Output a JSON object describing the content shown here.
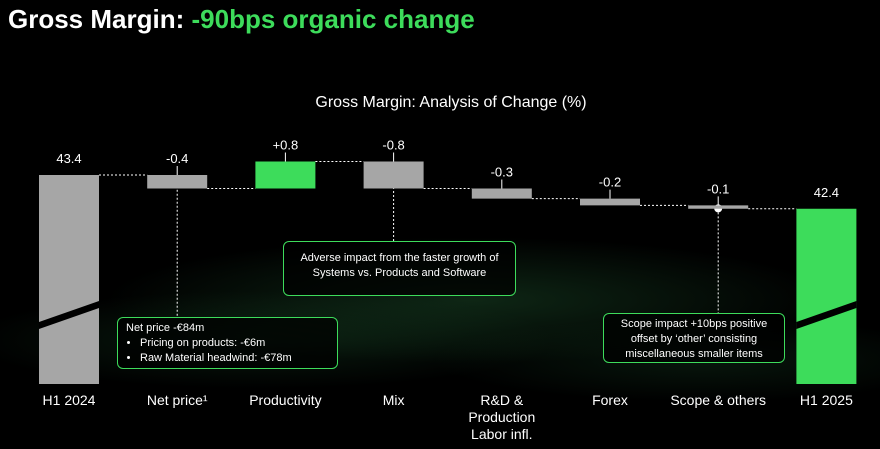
{
  "slide": {
    "title_prefix": "Gross Margin: ",
    "title_highlight": "-90bps organic change"
  },
  "colors": {
    "background": "#000000",
    "total_bar": "#a6a6a6",
    "negative_bar": "#a6a6a6",
    "positive_bar": "#3ddc5b",
    "accent": "#3ddc5b"
  },
  "chart_data": {
    "type": "waterfall",
    "title": "Gross Margin: Analysis of Change (%)",
    "categories": [
      "H1 2024",
      "Net price¹",
      "Productivity",
      "Mix",
      "R&D & Production Labor infl.",
      "Forex",
      "Scope & others",
      "H1 2025"
    ],
    "category_lines": [
      [
        "H1 2024"
      ],
      [
        "Net price¹"
      ],
      [
        "Productivity"
      ],
      [
        "Mix"
      ],
      [
        "R&D &",
        "Production",
        "Labor infl."
      ],
      [
        "Forex"
      ],
      [
        "Scope & others"
      ],
      [
        "H1 2025"
      ]
    ],
    "kinds": [
      "total",
      "delta",
      "delta",
      "delta",
      "delta",
      "delta",
      "delta",
      "total"
    ],
    "values": [
      43.4,
      -0.4,
      0.8,
      -0.8,
      -0.3,
      -0.2,
      -0.1,
      42.4
    ],
    "labels": [
      "43.4",
      "-0.4",
      "+0.8",
      "-0.8",
      "-0.3",
      "-0.2",
      "-0.1",
      "42.4"
    ],
    "axis_break": true,
    "grid": false,
    "legend": "none"
  },
  "callouts": {
    "net_price": {
      "heading": "Net price -€84m",
      "bullets": [
        "Pricing on products: -€6m",
        "Raw Material headwind: -€78m"
      ]
    },
    "mix": {
      "text": "Adverse impact from the faster growth of Systems vs. Products and Software"
    },
    "scope": {
      "text": "Scope impact +10bps positive offset by ‘other’ consisting miscellaneous smaller items"
    }
  }
}
